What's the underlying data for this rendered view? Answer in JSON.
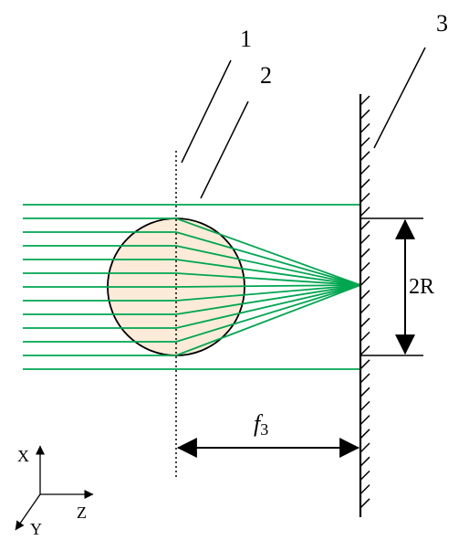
{
  "labels": {
    "callout_1": "1",
    "callout_2": "2",
    "callout_3": "3",
    "radius": "2R",
    "focal_italic": "f",
    "focal_sub": "3"
  },
  "axes": {
    "x": "X",
    "y": "Y",
    "z": "Z"
  },
  "colors": {
    "rays": "#00a650",
    "lens_fill": "#fbebd8",
    "ink": "#000000"
  },
  "ray_count": 13
}
